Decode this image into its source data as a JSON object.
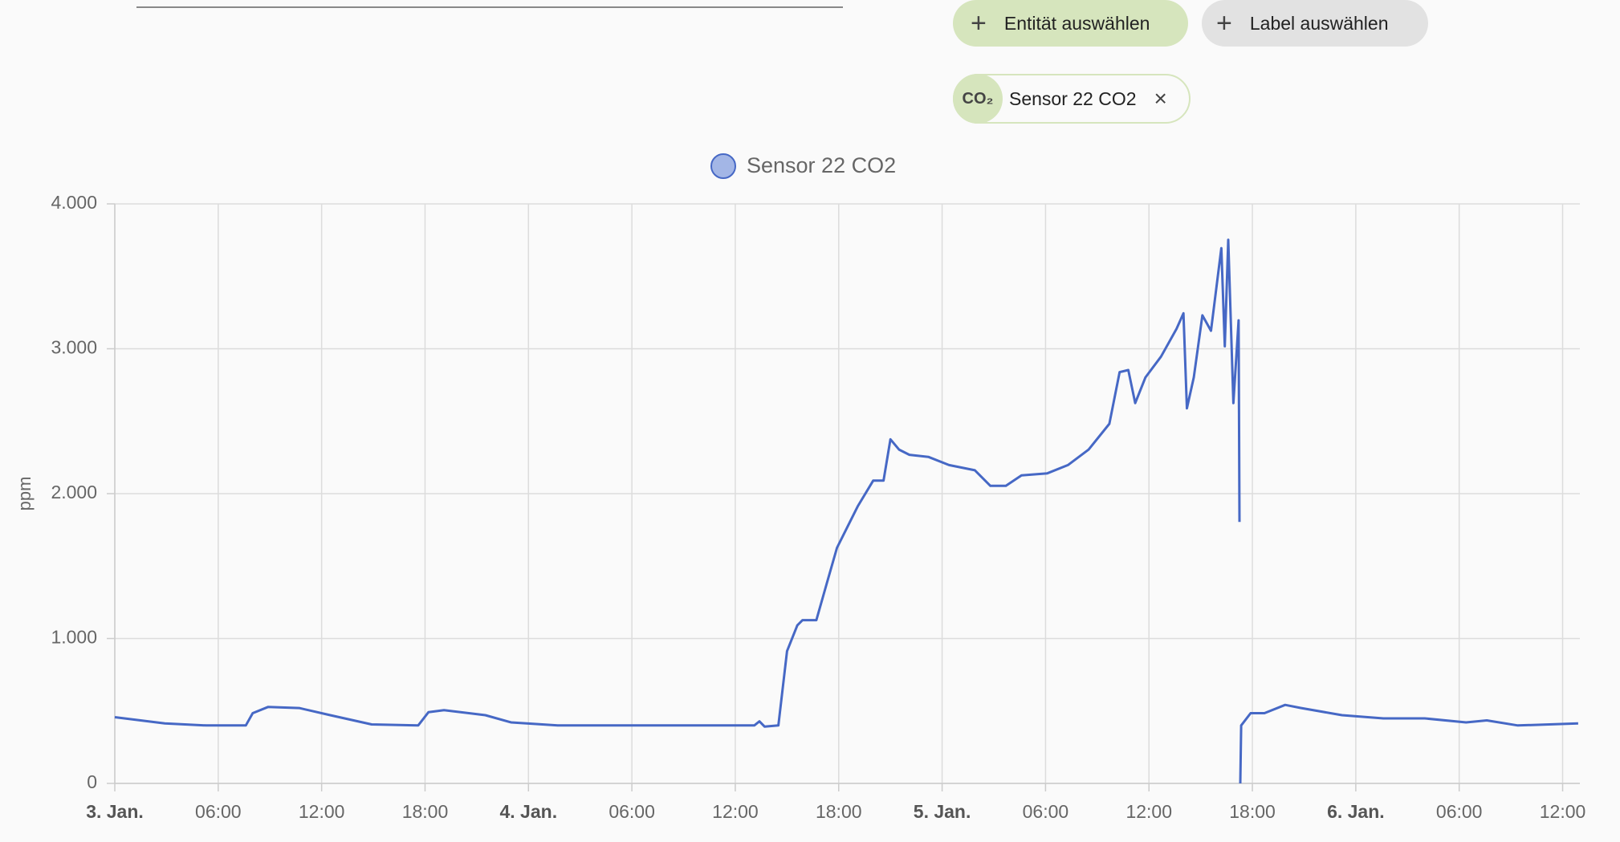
{
  "controls": {
    "entity_button": "Entität auswählen",
    "label_button": "Label auswählen",
    "chip": {
      "icon": "CO₂",
      "label": "Sensor 22 CO2"
    }
  },
  "chart_data": {
    "type": "line",
    "y_label": "ppm",
    "xlim": [
      0,
      85
    ],
    "ylim": [
      0,
      4000
    ],
    "grid": true,
    "xticks": [
      {
        "value": 0,
        "label": "3. Jan."
      },
      {
        "value": 6,
        "label": "06:00"
      },
      {
        "value": 12,
        "label": "12:00"
      },
      {
        "value": 18,
        "label": "18:00"
      },
      {
        "value": 24,
        "label": "4. Jan."
      },
      {
        "value": 30,
        "label": "06:00"
      },
      {
        "value": 36,
        "label": "12:00"
      },
      {
        "value": 42,
        "label": "18:00"
      },
      {
        "value": 48,
        "label": "5. Jan."
      },
      {
        "value": 54,
        "label": "06:00"
      },
      {
        "value": 60,
        "label": "12:00"
      },
      {
        "value": 66,
        "label": "18:00"
      },
      {
        "value": 72,
        "label": "6. Jan."
      },
      {
        "value": 78,
        "label": "06:00"
      },
      {
        "value": 84,
        "label": "12:00"
      }
    ],
    "yticks": [
      0,
      {
        "value": 1000,
        "label": "1.000"
      },
      {
        "value": 2000,
        "label": "2.000"
      },
      {
        "value": 3000,
        "label": "3.000"
      },
      {
        "value": 4000,
        "label": "4.000"
      }
    ],
    "series": [
      {
        "name": "Sensor 22 CO2",
        "color": "#4668c5",
        "x": [
          0,
          2.9,
          5.3,
          7.6,
          8.0,
          8.9,
          10.7,
          12.5,
          14.9,
          17.6,
          18.2,
          19.1,
          21.5,
          23,
          25.7,
          30.5,
          35.3,
          37.1,
          37.4,
          37.7,
          38.5,
          39.0,
          39.6,
          39.9,
          40.7,
          41.3,
          41.9,
          42.5,
          43.1,
          44.0,
          44.6,
          45.0,
          45.5,
          46.1,
          47.2,
          48.4,
          49.9,
          50.8,
          51.7,
          52.6,
          54.1,
          55.3,
          56.5,
          57.7,
          58.3,
          58.8,
          59.2,
          59.8,
          60.7,
          61.6,
          62.0,
          62.2,
          62.6,
          63.1,
          63.6,
          64.2,
          64.4,
          64.6,
          64.9,
          65.2,
          65.25,
          65.28,
          65.3,
          65.35,
          65.9,
          66.7,
          67.9,
          68.8,
          71.2,
          73.6,
          76.0,
          78.4,
          79.6,
          81.4,
          84.9
        ],
        "values": [
          457,
          414,
          400,
          400,
          485,
          528,
          520,
          471,
          407,
          400,
          492,
          506,
          471,
          421,
          400,
          400,
          400,
          400,
          428,
          392,
          400,
          913,
          1091,
          1127,
          1127,
          1377,
          1626,
          1769,
          1912,
          2090,
          2090,
          2375,
          2304,
          2268,
          2254,
          2197,
          2161,
          2054,
          2054,
          2126,
          2140,
          2197,
          2304,
          2482,
          2839,
          2853,
          2625,
          2803,
          2946,
          3138,
          3245,
          2589,
          2803,
          3231,
          3124,
          3695,
          3017,
          3752,
          2625,
          3196,
          1805,
          null,
          0,
          400,
          485,
          485,
          542,
          521,
          471,
          449,
          449,
          421,
          435,
          400,
          414
        ]
      }
    ]
  }
}
